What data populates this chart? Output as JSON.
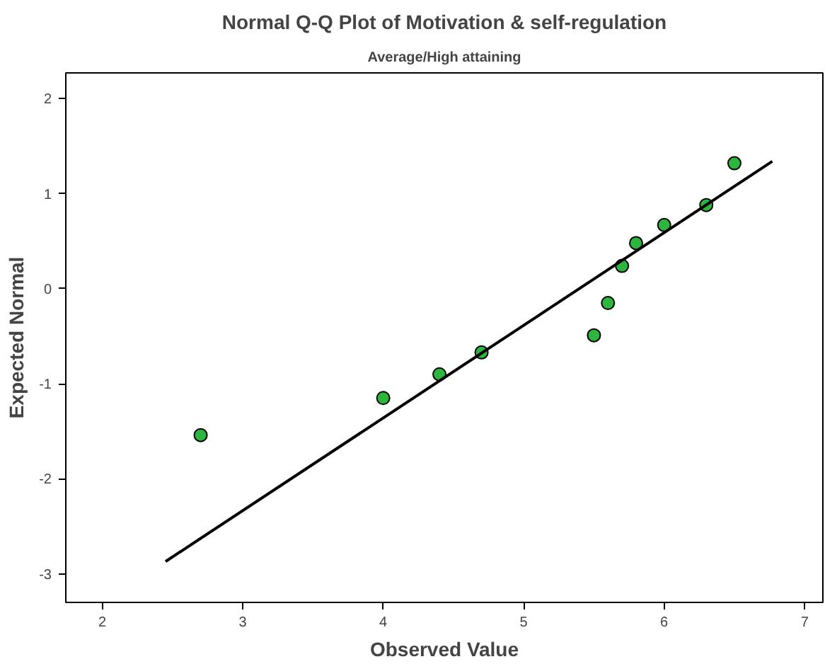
{
  "chart_data": {
    "type": "scatter",
    "title": "Normal Q-Q Plot of Motivation & self-regulation",
    "subtitle": "Average/High attaining",
    "xlabel": "Observed Value",
    "ylabel": "Expected Normal",
    "series": [
      {
        "marker": "circle",
        "color": "#2db53e",
        "x": [
          2.7,
          4.0,
          4.4,
          4.7,
          5.5,
          5.6,
          5.7,
          5.8,
          6.0,
          6.3,
          6.5
        ],
        "values": [
          -1.54,
          -1.15,
          -0.9,
          -0.67,
          -0.49,
          -0.15,
          0.24,
          0.48,
          0.67,
          0.88,
          1.32
        ]
      },
      {
        "type": "line",
        "color": "#000000",
        "x": [
          2.45,
          6.77
        ],
        "values": [
          -2.87,
          1.34
        ]
      }
    ],
    "xlim": [
      1.74,
      7.13
    ],
    "ylim": [
      -3.3,
      2.27
    ],
    "xticks": [
      2,
      3,
      4,
      5,
      6,
      7
    ],
    "yticks": [
      -3,
      -2,
      -1,
      0,
      1,
      2
    ],
    "grid": false
  }
}
